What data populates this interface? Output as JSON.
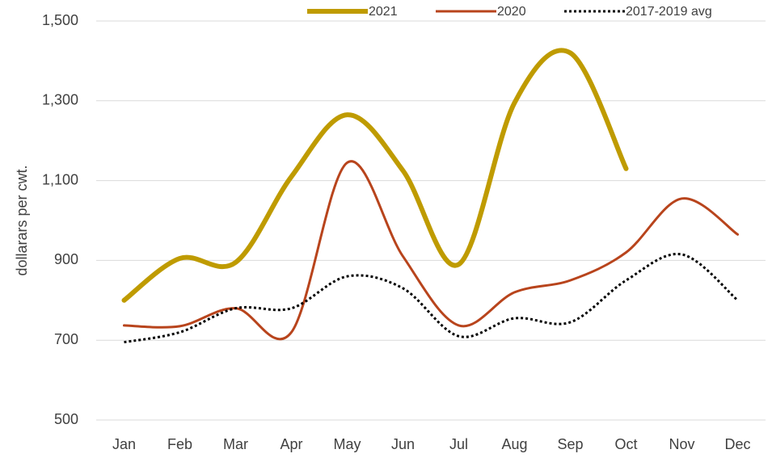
{
  "chart_data": {
    "type": "line",
    "y_label": "dollarars per cwt.",
    "categories": [
      "Jan",
      "Feb",
      "Mar",
      "Apr",
      "May",
      "Jun",
      "Jul",
      "Aug",
      "Sep",
      "Oct",
      "Nov",
      "Dec"
    ],
    "series": [
      {
        "name": "2021",
        "color": "#bf9b00",
        "width": 6,
        "dash": "solid",
        "values": [
          800,
          905,
          895,
          1110,
          1265,
          1125,
          890,
          1295,
          1420,
          1130,
          null,
          null
        ]
      },
      {
        "name": "2020",
        "color": "#b8441c",
        "width": 3,
        "dash": "solid",
        "values": [
          737,
          735,
          780,
          720,
          1145,
          910,
          737,
          820,
          850,
          920,
          1055,
          965
        ]
      },
      {
        "name": "2017-2019 avg",
        "color": "#000000",
        "width": 3,
        "dash": "dotted",
        "values": [
          695,
          720,
          780,
          780,
          860,
          830,
          710,
          755,
          745,
          850,
          915,
          800
        ]
      }
    ],
    "ylim": [
      500,
      1500
    ],
    "yticks": [
      500,
      700,
      900,
      {
        "value": 1100,
        "label": "1,100"
      },
      {
        "value": 1300,
        "label": "1,300"
      },
      {
        "value": 1500,
        "label": "1,500"
      }
    ],
    "grid": true,
    "legend": "top",
    "smooth": true
  }
}
